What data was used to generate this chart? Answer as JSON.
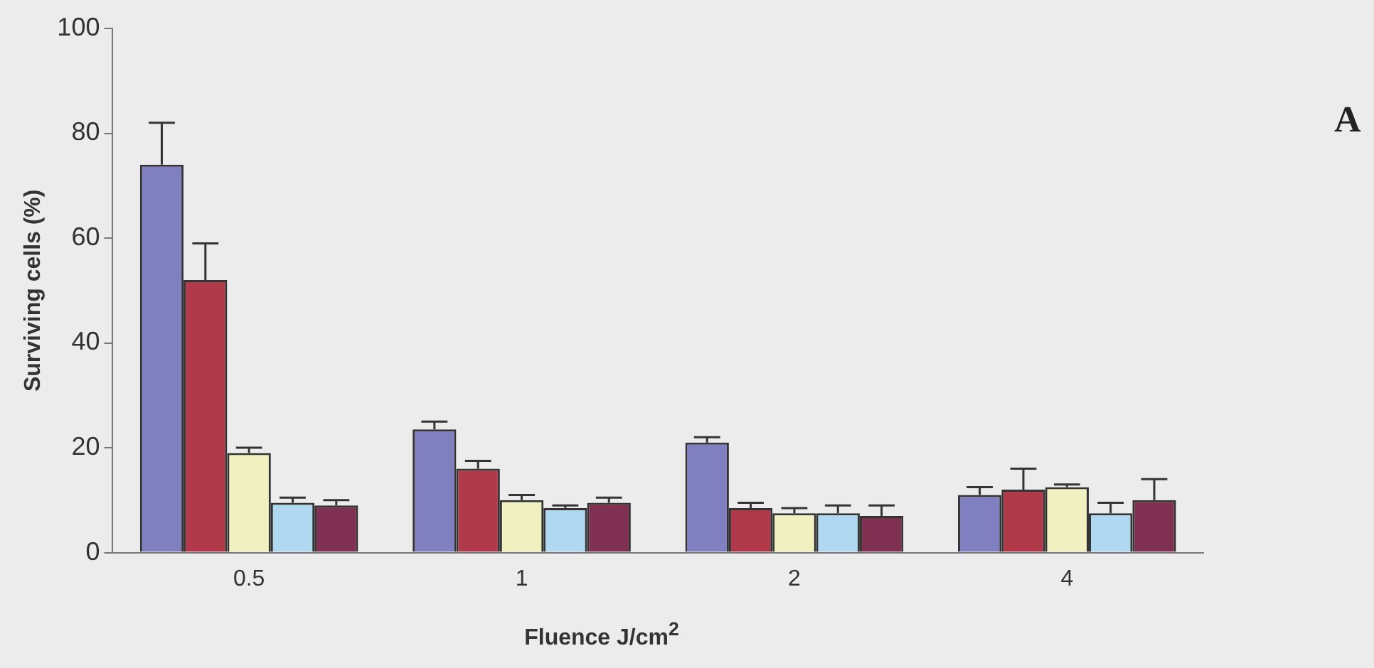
{
  "chart_data": {
    "type": "bar",
    "xlabel": "Fluence J/cm$^{2}$",
    "ylabel": "Surviving cells (%)",
    "annotations": [
      "A"
    ],
    "categories": [
      "0.5",
      "1",
      "2",
      "4"
    ],
    "ylim": [
      0,
      100
    ],
    "yticks": [
      0,
      20,
      40,
      60,
      80,
      100
    ],
    "grid": false,
    "legend": false,
    "series": [
      {
        "color": "#8080c0",
        "values": [
          74,
          23.5,
          21,
          11
        ],
        "errors": [
          [
            74,
            82
          ],
          [
            23.5,
            25
          ],
          [
            21,
            22
          ],
          [
            11,
            12.5
          ]
        ]
      },
      {
        "color": "#b03a4a",
        "values": [
          52,
          16,
          8.5,
          12
        ],
        "errors": [
          [
            52,
            59
          ],
          [
            16,
            17.5
          ],
          [
            8.5,
            9.5
          ],
          [
            12,
            16
          ]
        ]
      },
      {
        "color": "#f0f0c0",
        "values": [
          19,
          10,
          7.5,
          12.5
        ],
        "errors": [
          [
            19,
            20
          ],
          [
            10,
            11
          ],
          [
            7.5,
            8.5
          ],
          [
            12.5,
            13
          ]
        ]
      },
      {
        "color": "#b0d8f0",
        "values": [
          9.5,
          8.5,
          7.5,
          7.5
        ],
        "errors": [
          [
            9.5,
            10.5
          ],
          [
            8.5,
            9
          ],
          [
            7.5,
            9
          ],
          [
            7.5,
            9.5
          ]
        ]
      },
      {
        "color": "#803050",
        "values": [
          9,
          9.5,
          7,
          10
        ],
        "errors": [
          [
            9,
            10
          ],
          [
            9.5,
            10.5
          ],
          [
            7,
            9
          ],
          [
            10,
            14
          ]
        ]
      }
    ]
  }
}
